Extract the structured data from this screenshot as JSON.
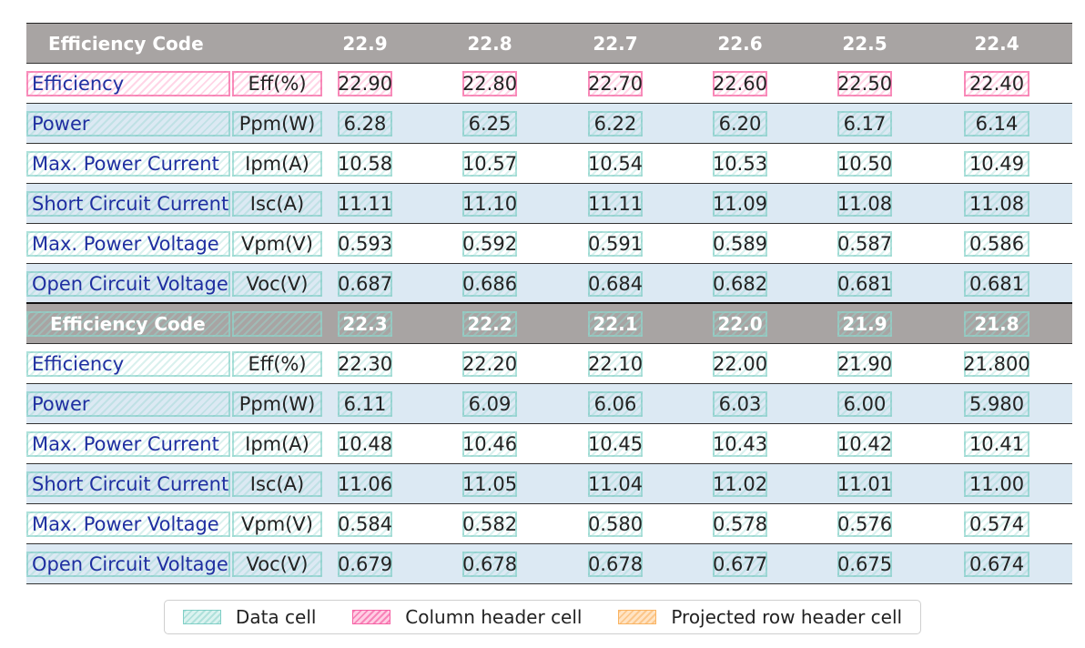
{
  "table": {
    "blocks": [
      {
        "header": {
          "label": "Efficiency Code",
          "values": [
            "22.9",
            "22.8",
            "22.7",
            "22.6",
            "22.5",
            "22.4"
          ]
        },
        "rows": [
          {
            "label": "Efficiency",
            "unit": "Eff(%)",
            "values": [
              "22.90",
              "22.80",
              "22.70",
              "22.60",
              "22.50",
              "22.40"
            ]
          },
          {
            "label": "Power",
            "unit": "Ppm(W)",
            "values": [
              "6.28",
              "6.25",
              "6.22",
              "6.20",
              "6.17",
              "6.14"
            ]
          },
          {
            "label": "Max. Power Current",
            "unit": "Ipm(A)",
            "values": [
              "10.58",
              "10.57",
              "10.54",
              "10.53",
              "10.50",
              "10.49"
            ]
          },
          {
            "label": "Short Circuit Current",
            "unit": "Isc(A)",
            "values": [
              "11.11",
              "11.10",
              "11.11",
              "11.09",
              "11.08",
              "11.08"
            ]
          },
          {
            "label": "Max. Power Voltage",
            "unit": "Vpm(V)",
            "values": [
              "0.593",
              "0.592",
              "0.591",
              "0.589",
              "0.587",
              "0.586"
            ]
          },
          {
            "label": "Open Circuit Voltage",
            "unit": "Voc(V)",
            "values": [
              "0.687",
              "0.686",
              "0.684",
              "0.682",
              "0.681",
              "0.681"
            ]
          }
        ]
      },
      {
        "header": {
          "label": "Efficiency Code",
          "values": [
            "22.3",
            "22.2",
            "22.1",
            "22.0",
            "21.9",
            "21.8"
          ]
        },
        "rows": [
          {
            "label": "Efficiency",
            "unit": "Eff(%)",
            "values": [
              "22.30",
              "22.20",
              "22.10",
              "22.00",
              "21.90",
              "21.800"
            ]
          },
          {
            "label": "Power",
            "unit": "Ppm(W)",
            "values": [
              "6.11",
              "6.09",
              "6.06",
              "6.03",
              "6.00",
              "5.980"
            ]
          },
          {
            "label": "Max. Power Current",
            "unit": "Ipm(A)",
            "values": [
              "10.48",
              "10.46",
              "10.45",
              "10.43",
              "10.42",
              "10.41"
            ]
          },
          {
            "label": "Short Circuit Current",
            "unit": "Isc(A)",
            "values": [
              "11.06",
              "11.05",
              "11.04",
              "11.02",
              "11.01",
              "11.00"
            ]
          },
          {
            "label": "Max. Power Voltage",
            "unit": "Vpm(V)",
            "values": [
              "0.584",
              "0.582",
              "0.580",
              "0.578",
              "0.576",
              "0.574"
            ]
          },
          {
            "label": "Open Circuit Voltage",
            "unit": "Voc(V)",
            "values": [
              "0.679",
              "0.678",
              "0.678",
              "0.677",
              "0.675",
              "0.674"
            ]
          }
        ]
      }
    ]
  },
  "legend": {
    "items": [
      {
        "label": "Data cell",
        "color": "#7fd0c6"
      },
      {
        "label": "Column header cell",
        "color": "#f25aa0"
      },
      {
        "label": "Projected row header cell",
        "color": "#f8b06a"
      }
    ]
  }
}
